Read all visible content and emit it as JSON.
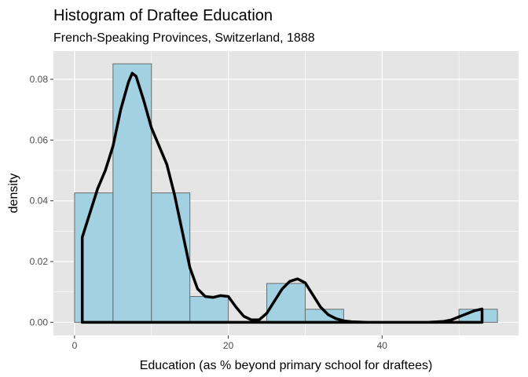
{
  "chart_data": {
    "type": "histogram",
    "title": "Histogram of Draftee Education",
    "subtitle": "French-Speaking Provinces, Switzerland, 1888",
    "xlabel": "Education (as % beyond primary school for draftees)",
    "ylabel": "density",
    "xlim": [
      -2.75,
      57.75
    ],
    "ylim": [
      -0.0043,
      0.0893
    ],
    "x_ticks": [
      0,
      20,
      40
    ],
    "x_tick_labels": [
      "0",
      "20",
      "40"
    ],
    "y_ticks": [
      0,
      0.02,
      0.04,
      0.06,
      0.08
    ],
    "y_tick_labels": [
      "0.00",
      "0.02",
      "0.04",
      "0.06",
      "0.08"
    ],
    "grid": true,
    "bins": [
      {
        "x0": 0,
        "x1": 5,
        "density": 0.0426
      },
      {
        "x0": 5,
        "x1": 10,
        "density": 0.0851
      },
      {
        "x0": 10,
        "x1": 15,
        "density": 0.0426
      },
      {
        "x0": 15,
        "x1": 20,
        "density": 0.0085
      },
      {
        "x0": 20,
        "x1": 25,
        "density": 0
      },
      {
        "x0": 25,
        "x1": 30,
        "density": 0.0128
      },
      {
        "x0": 30,
        "x1": 35,
        "density": 0.0043
      },
      {
        "x0": 35,
        "x1": 40,
        "density": 0
      },
      {
        "x0": 40,
        "x1": 45,
        "density": 0
      },
      {
        "x0": 45,
        "x1": 50,
        "density": 0
      },
      {
        "x0": 50,
        "x1": 55,
        "density": 0.0043
      }
    ],
    "density_curve": {
      "x": [
        1,
        2,
        3,
        4,
        5,
        6,
        7,
        7.5,
        8,
        9,
        10,
        11,
        12,
        13,
        14,
        15,
        16,
        17,
        18,
        19,
        20,
        21,
        22,
        23,
        24,
        25,
        26,
        27,
        28,
        29,
        30,
        31,
        32,
        33,
        34,
        35,
        36,
        38,
        40,
        42,
        44,
        46,
        48,
        49,
        50,
        51,
        52,
        53
      ],
      "y": [
        0.028,
        0.036,
        0.044,
        0.05,
        0.058,
        0.07,
        0.079,
        0.082,
        0.081,
        0.073,
        0.064,
        0.058,
        0.052,
        0.042,
        0.03,
        0.018,
        0.011,
        0.0085,
        0.0082,
        0.0088,
        0.0085,
        0.005,
        0.002,
        0.0008,
        0.0008,
        0.003,
        0.007,
        0.011,
        0.0135,
        0.0143,
        0.013,
        0.009,
        0.005,
        0.0025,
        0.0012,
        0.0005,
        0.0002,
        0,
        0,
        0,
        0,
        0,
        0.0003,
        0.0008,
        0.0018,
        0.0028,
        0.0038,
        0.0044
      ]
    },
    "colors": {
      "panel_background": "#e5e5e5",
      "grid": "#ffffff",
      "bar_fill": "#a2d2e2",
      "bar_stroke": "#6b6b6b",
      "curve": "#000000"
    }
  }
}
